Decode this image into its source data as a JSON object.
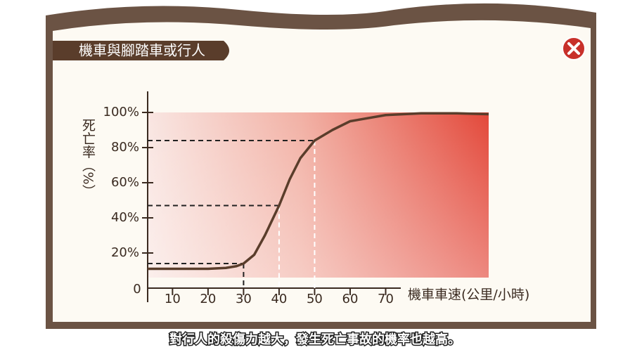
{
  "header": {
    "title": "機車與腳踏車或行人"
  },
  "chart_data": {
    "type": "line",
    "y_label": "死亡率（%）",
    "x_label": "機車車速(公里/小時)",
    "origin_label": "0",
    "x": [
      3,
      10,
      20,
      25,
      28,
      30,
      33,
      36,
      40,
      43,
      46,
      50,
      55,
      60,
      70,
      80,
      90,
      99
    ],
    "series": [
      {
        "color": "#5a3d2b",
        "values": [
          11,
          11,
          11,
          11.5,
          12.5,
          14,
          19,
          30,
          47,
          62,
          74,
          84,
          90,
          95,
          98.5,
          99.5,
          99.5,
          99
        ]
      }
    ],
    "guides": [
      {
        "x": 30,
        "y": 14
      },
      {
        "x": 40,
        "y": 47
      },
      {
        "x": 50,
        "y": 84
      }
    ],
    "xlim": [
      3,
      99
    ],
    "ylim": [
      0,
      100
    ],
    "xticks": [
      10,
      20,
      30,
      40,
      50,
      60,
      70
    ],
    "yticks": [
      {
        "value": 20,
        "label": "20%"
      },
      {
        "value": 40,
        "label": "40%"
      },
      {
        "value": 60,
        "label": "60%"
      },
      {
        "value": 80,
        "label": "80%"
      },
      {
        "value": 100,
        "label": "100%"
      }
    ]
  },
  "caption": "對行人的殺傷力越大，發生死亡事故的機率也越高。"
}
